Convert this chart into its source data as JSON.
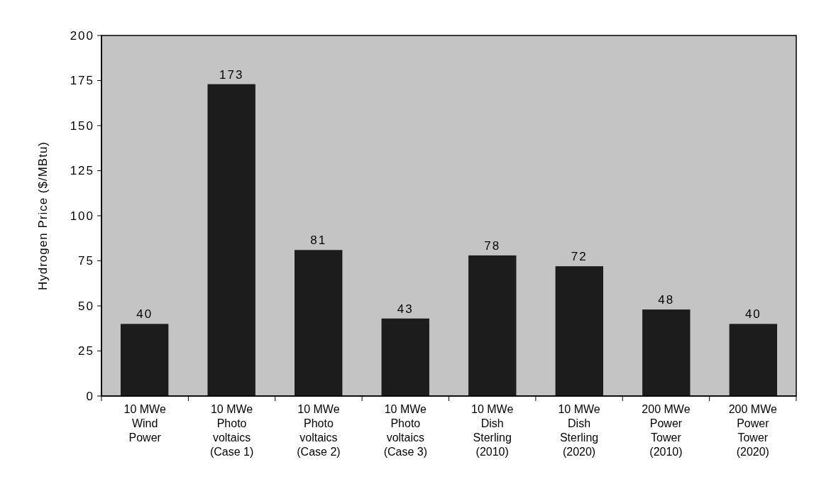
{
  "chart_data": {
    "type": "bar",
    "ylabel": "Hydrogen  Price  ($/MBtu)",
    "categories": [
      "10 MWe\nWind\nPower",
      "10 MWe\nPhoto\nvoltaics\n(Case 1)",
      "10 MWe\nPhoto\nvoltaics\n(Case 2)",
      "10 MWe\nPhoto\nvoltaics\n(Case 3)",
      "10 MWe\nDish\nSterling\n(2010)",
      "10 MWe\nDish\nSterling\n(2020)",
      "200 MWe\nPower\nTower\n(2010)",
      "200 MWe\nPower\nTower\n(2020)"
    ],
    "values": [
      40,
      173,
      81,
      43,
      78,
      72,
      48,
      40
    ],
    "color": "#1c1c1c",
    "data_labels": true,
    "ylim": [
      0,
      200
    ],
    "yticks": [
      0,
      25,
      50,
      75,
      100,
      125,
      150,
      175,
      200
    ],
    "grid": false
  }
}
